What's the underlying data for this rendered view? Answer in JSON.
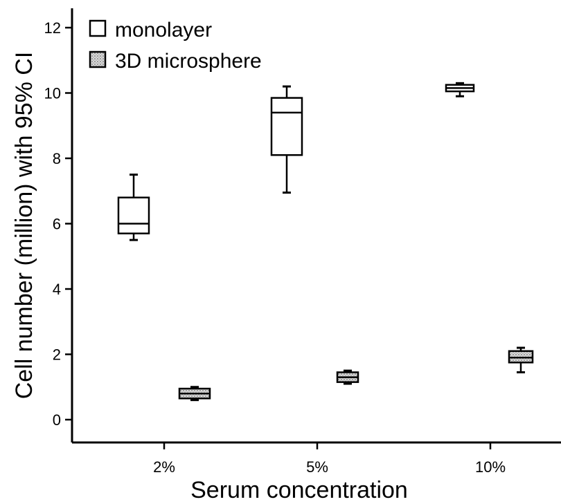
{
  "chart_data": {
    "type": "box",
    "xlabel": "Serum concentration",
    "ylabel": "Cell number (million) with 95% CI",
    "categories": [
      "2%",
      "5%",
      "10%"
    ],
    "ylim": [
      0,
      12
    ],
    "yticks": [
      0,
      2,
      4,
      6,
      8,
      10,
      12
    ],
    "grid": false,
    "legend_position": "top-left",
    "series": [
      {
        "name": "monolayer",
        "fill": "#ffffff",
        "boxes": [
          {
            "whisker_low": 5.5,
            "q1": 5.7,
            "median": 6.0,
            "q3": 6.8,
            "whisker_high": 7.5
          },
          {
            "whisker_low": 6.95,
            "q1": 8.1,
            "median": 9.4,
            "q3": 9.85,
            "whisker_high": 10.2
          },
          {
            "whisker_low": 9.9,
            "q1": 10.05,
            "median": 10.15,
            "q3": 10.25,
            "whisker_high": 10.3
          }
        ]
      },
      {
        "name": "3D microsphere",
        "fill": "#d8d8d8",
        "boxes": [
          {
            "whisker_low": 0.6,
            "q1": 0.65,
            "median": 0.8,
            "q3": 0.95,
            "whisker_high": 1.0
          },
          {
            "whisker_low": 1.1,
            "q1": 1.15,
            "median": 1.3,
            "q3": 1.45,
            "whisker_high": 1.5
          },
          {
            "whisker_low": 1.45,
            "q1": 1.75,
            "median": 1.9,
            "q3": 2.1,
            "whisker_high": 2.2
          }
        ]
      }
    ]
  }
}
